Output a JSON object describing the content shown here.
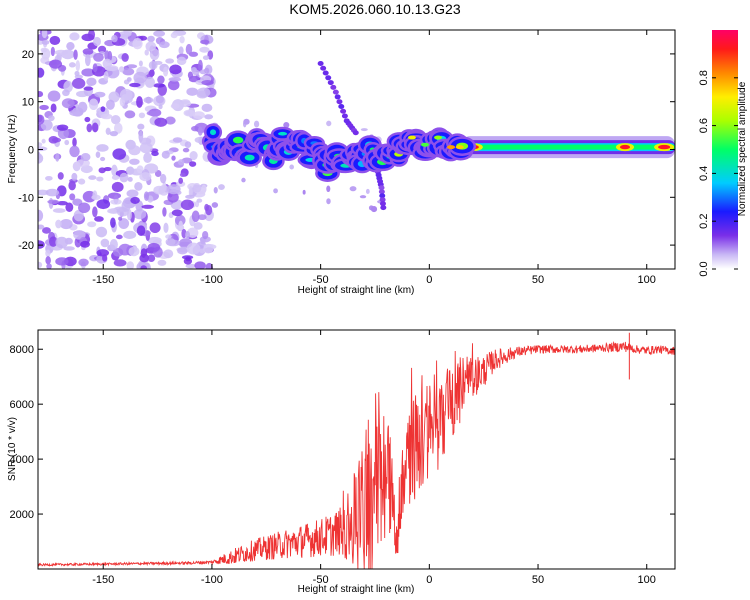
{
  "title": "KOM5.2026.060.10.13.G23",
  "chart_data": [
    {
      "type": "heatmap",
      "name": "spectrogram",
      "xlabel": "Height of straight line (km)",
      "ylabel": "Frequency (Hz)",
      "xlim": [
        -180,
        113
      ],
      "ylim": [
        -25,
        25
      ],
      "xticks": [
        -150,
        -100,
        -50,
        0,
        50,
        100
      ],
      "yticks": [
        20,
        10,
        0,
        -10,
        -20
      ],
      "colorbar": {
        "label": "Normalized spectral amplitude",
        "range": [
          0,
          1
        ],
        "ticks": [
          "0.0",
          "0.2",
          "0.4",
          "0.6",
          "0.8"
        ],
        "tick_values": [
          0.0,
          0.2,
          0.4,
          0.6,
          0.8
        ]
      },
      "features": [
        {
          "name": "noise-field",
          "x_range": [
            -180,
            -100
          ],
          "y_range": [
            -25,
            25
          ],
          "amplitude": 0.1
        },
        {
          "name": "signal-track",
          "points": [
            [
              -100,
              3
            ],
            [
              -97,
              0
            ],
            [
              -93,
              -1.5
            ],
            [
              -89,
              1.5
            ],
            [
              -84,
              -2
            ],
            [
              -80,
              3
            ],
            [
              -76,
              1
            ],
            [
              -72,
              -2
            ],
            [
              -68,
              2
            ],
            [
              -64,
              -1
            ],
            [
              -60,
              3
            ],
            [
              -55,
              -2
            ],
            [
              -51,
              1
            ],
            [
              -47,
              -4
            ],
            [
              -43,
              -1
            ],
            [
              -39,
              -3
            ],
            [
              -35,
              0
            ],
            [
              -31,
              -2
            ],
            [
              -27,
              1
            ],
            [
              -23,
              -3
            ],
            [
              -19,
              0
            ],
            [
              -15,
              -1
            ],
            [
              -11,
              2
            ],
            [
              -7,
              1
            ],
            [
              -3,
              0
            ],
            [
              0,
              1
            ],
            [
              4,
              2
            ],
            [
              8,
              0.5
            ],
            [
              12,
              0.5
            ],
            [
              17,
              0.5
            ],
            [
              20,
              0
            ],
            [
              30,
              0.5
            ],
            [
              40,
              0.5
            ],
            [
              50,
              0.5
            ],
            [
              60,
              0.5
            ],
            [
              70,
              0.5
            ],
            [
              80,
              0.5
            ],
            [
              90,
              0.5
            ],
            [
              100,
              0.5
            ],
            [
              113,
              0.5
            ]
          ]
        },
        {
          "name": "upper-branch",
          "points": [
            [
              -50,
              18
            ],
            [
              -43,
              12
            ],
            [
              -38,
              6
            ],
            [
              -33,
              3
            ]
          ]
        },
        {
          "name": "lower-tail",
          "points": [
            [
              -24,
              -4
            ],
            [
              -22,
              -8
            ],
            [
              -21,
              -13
            ]
          ]
        }
      ]
    },
    {
      "type": "line",
      "name": "snr",
      "xlabel": "Height of straight line (km)",
      "ylabel": "SNR (10 * v/v)",
      "xlim": [
        -180,
        113
      ],
      "ylim": [
        0,
        8700
      ],
      "xticks": [
        -150,
        -100,
        -50,
        0,
        50,
        100
      ],
      "yticks": [
        2000,
        4000,
        6000,
        8000
      ],
      "color": "#ee3333",
      "x": [
        -180,
        -150,
        -110,
        -100,
        -90,
        -80,
        -70,
        -60,
        -50,
        -45,
        -40,
        -35,
        -30,
        -25,
        -20,
        -18,
        -15,
        -12,
        -10,
        -5,
        0,
        5,
        10,
        15,
        20,
        25,
        30,
        40,
        50,
        60,
        70,
        80,
        90,
        95,
        100,
        105,
        110,
        113
      ],
      "y": [
        150,
        180,
        220,
        250,
        450,
        700,
        850,
        1000,
        1150,
        1250,
        1400,
        1600,
        2000,
        2600,
        3000,
        3600,
        700,
        4000,
        4200,
        4500,
        5000,
        5200,
        6000,
        6400,
        7000,
        7200,
        7600,
        7900,
        8000,
        8000,
        8000,
        8050,
        8100,
        8000,
        7950,
        8000,
        7950,
        7950
      ],
      "spread": [
        40,
        40,
        50,
        60,
        300,
        400,
        500,
        600,
        700,
        800,
        900,
        1800,
        2500,
        2800,
        3000,
        2500,
        500,
        2000,
        2000,
        2000,
        1800,
        1500,
        1500,
        1000,
        800,
        600,
        400,
        200,
        150,
        150,
        150,
        150,
        200,
        150,
        150,
        150,
        150,
        150
      ]
    }
  ]
}
